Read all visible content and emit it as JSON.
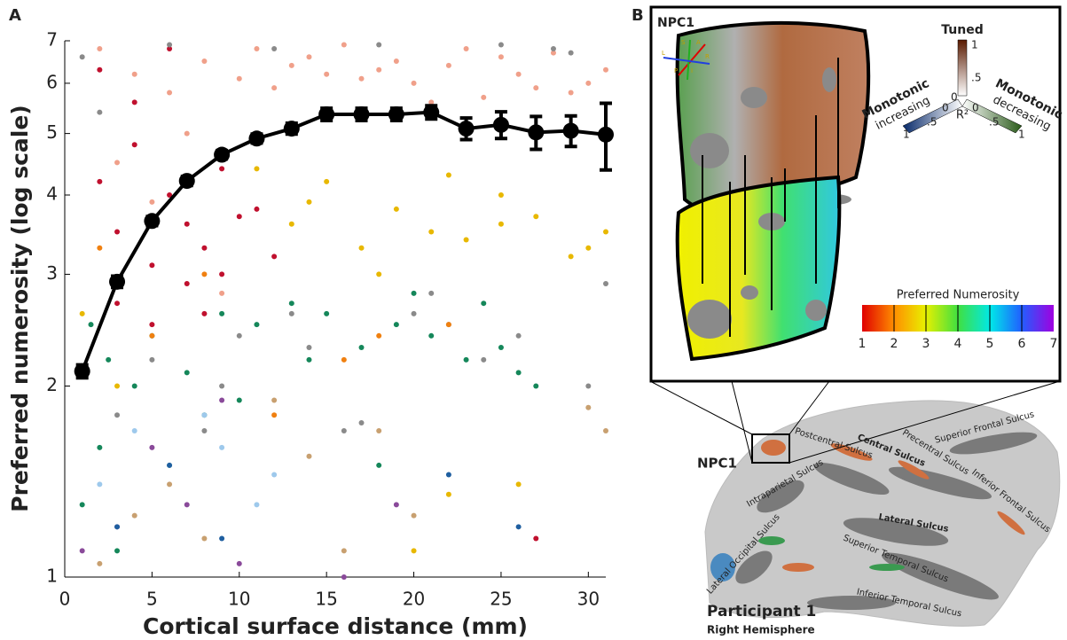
{
  "chart_data": {
    "type": "scatter",
    "panel_label": "A",
    "x_label": "Cortical surface distance (mm)",
    "y_label": "Preferred numerosity (log scale)",
    "xlim": [
      0,
      31
    ],
    "ylim": [
      1,
      7
    ],
    "log_y": true,
    "xticks": [
      0,
      5,
      10,
      15,
      20,
      25,
      30
    ],
    "yticks": [
      1,
      2,
      3,
      4,
      5,
      6,
      7
    ],
    "series": [
      {
        "color": "#f0a08a",
        "x": [
          2,
          4,
          6,
          8,
          10,
          12,
          14,
          16,
          18,
          20,
          22,
          24,
          26,
          28,
          30,
          3,
          7,
          11,
          15,
          19,
          23,
          27,
          31,
          5,
          9,
          13,
          17,
          21,
          25,
          29
        ],
        "values": [
          6.8,
          6.2,
          5.8,
          6.5,
          6.1,
          5.9,
          6.6,
          6.9,
          6.3,
          6.0,
          6.4,
          5.7,
          6.2,
          6.7,
          6.0,
          4.5,
          5.0,
          6.8,
          6.2,
          6.5,
          6.8,
          5.9,
          6.3,
          3.9,
          2.8,
          6.4,
          6.1,
          5.6,
          6.6,
          5.8
        ]
      },
      {
        "color": "#c0102e",
        "x": [
          2,
          3,
          4,
          5,
          6,
          7,
          8,
          9,
          10,
          3,
          5,
          7,
          9,
          11,
          4,
          6,
          8,
          2,
          12,
          27
        ],
        "values": [
          4.2,
          3.5,
          4.8,
          3.1,
          4.0,
          3.6,
          3.3,
          4.4,
          3.7,
          2.7,
          2.5,
          2.9,
          3.0,
          3.8,
          5.6,
          6.8,
          2.6,
          6.3,
          3.2,
          1.15
        ]
      },
      {
        "color": "#e8b800",
        "x": [
          11,
          13,
          15,
          17,
          19,
          21,
          23,
          25,
          27,
          29,
          31,
          14,
          18,
          22,
          26,
          30,
          20,
          22,
          25,
          1,
          3
        ],
        "values": [
          4.4,
          3.6,
          4.2,
          3.3,
          3.8,
          3.5,
          3.4,
          4.0,
          3.7,
          3.2,
          3.5,
          3.9,
          3.0,
          1.35,
          1.4,
          3.3,
          1.1,
          4.3,
          3.6,
          2.6,
          2.0
        ]
      },
      {
        "color": "#8a8a8a",
        "x": [
          1,
          2,
          3,
          5,
          6,
          8,
          10,
          12,
          14,
          16,
          18,
          20,
          22,
          24,
          26,
          28,
          30,
          31,
          9,
          13,
          17,
          21,
          25,
          29
        ],
        "values": [
          6.6,
          5.4,
          1.8,
          2.2,
          6.9,
          1.7,
          2.4,
          6.8,
          2.3,
          1.7,
          6.9,
          2.6,
          2.5,
          2.2,
          2.4,
          6.8,
          2.0,
          2.9,
          2.0,
          2.6,
          1.75,
          2.8,
          6.9,
          6.7
        ]
      },
      {
        "color": "#15875a",
        "x": [
          1,
          1.5,
          2,
          2.5,
          3,
          4,
          5,
          6,
          7,
          8,
          9,
          10,
          13,
          15,
          17,
          19,
          21,
          23,
          24,
          25,
          26,
          27,
          18,
          20,
          11,
          14
        ],
        "values": [
          1.3,
          2.5,
          1.6,
          2.2,
          1.1,
          2.0,
          2.4,
          1.5,
          2.1,
          1.8,
          2.6,
          1.9,
          2.7,
          2.6,
          2.3,
          2.5,
          2.4,
          2.2,
          2.7,
          2.3,
          2.1,
          2.0,
          1.5,
          2.8,
          2.5,
          2.2
        ]
      },
      {
        "color": "#9ec9ec",
        "x": [
          2,
          4,
          6,
          8,
          9,
          11,
          12
        ],
        "values": [
          1.4,
          1.7,
          1.5,
          1.8,
          1.6,
          1.3,
          1.45
        ]
      },
      {
        "color": "#8a4a9a",
        "x": [
          1,
          3,
          5,
          7,
          10,
          16,
          19,
          9
        ],
        "values": [
          1.1,
          1.2,
          1.6,
          1.3,
          1.05,
          1.0,
          1.3,
          1.9
        ]
      },
      {
        "color": "#c8a070",
        "x": [
          2,
          4,
          6,
          8,
          12,
          14,
          16,
          18,
          20,
          30,
          31
        ],
        "values": [
          1.05,
          1.25,
          1.4,
          1.15,
          1.9,
          1.55,
          1.1,
          1.7,
          1.25,
          1.85,
          1.7
        ]
      },
      {
        "color": "#f08010",
        "x": [
          2,
          5,
          8,
          12,
          16,
          18,
          22
        ],
        "values": [
          3.3,
          2.4,
          3.0,
          1.8,
          2.2,
          2.4,
          2.5
        ]
      },
      {
        "color": "#1f5fa0",
        "x": [
          3,
          6,
          9,
          26,
          22
        ],
        "values": [
          1.2,
          1.5,
          1.15,
          1.2,
          1.45
        ]
      }
    ],
    "mean": {
      "color": "#000000",
      "x": [
        1,
        3,
        5,
        7,
        9,
        11,
        13,
        15,
        17,
        19,
        21,
        23,
        25,
        27,
        29,
        31
      ],
      "values": [
        2.11,
        2.92,
        3.64,
        4.21,
        4.63,
        4.91,
        5.09,
        5.36,
        5.36,
        5.36,
        5.4,
        5.09,
        5.16,
        5.02,
        5.05,
        4.98
      ],
      "errors": [
        0.05,
        0.06,
        0.06,
        0.07,
        0.07,
        0.08,
        0.1,
        0.12,
        0.12,
        0.12,
        0.13,
        0.2,
        0.25,
        0.3,
        0.28,
        0.6
      ]
    }
  },
  "panel_b": {
    "panel_label": "B",
    "inset_title": "NPC1",
    "compass": [
      "S",
      "A",
      "L",
      "R",
      "P",
      "I"
    ],
    "r2_legend": {
      "tuned": "Tuned",
      "monotonic_left": "Monotonic",
      "increasing": "increasing",
      "monotonic_right": "Monotonic",
      "decreasing": "decreasing",
      "axis": "R²",
      "tuned_labels": [
        "1",
        ".5",
        "0"
      ],
      "left_labels": [
        "1",
        ".5",
        "0"
      ],
      "right_labels": [
        "0",
        ".5",
        "1"
      ]
    },
    "numerosity_colorbar": {
      "title": "Preferred Numerosity",
      "ticks": [
        "1",
        "2",
        "3",
        "4",
        "5",
        "6",
        "7"
      ]
    },
    "brain_labels": [
      "Postcentral Sulcus",
      "Central Sulcus",
      "Precentral Sulcus",
      "Superior Frontal Sulcus",
      "Inferior Frontal Sulcus",
      "Intraparietal Sulcus",
      "Lateral Sulcus",
      "Lateral Occipital Sulcus",
      "Superior Temporal Sulcus",
      "Inferior Temporal Sulcus"
    ],
    "roi_label": "NPC1",
    "participant": "Participant 1",
    "hemisphere": "Right Hemisphere"
  }
}
